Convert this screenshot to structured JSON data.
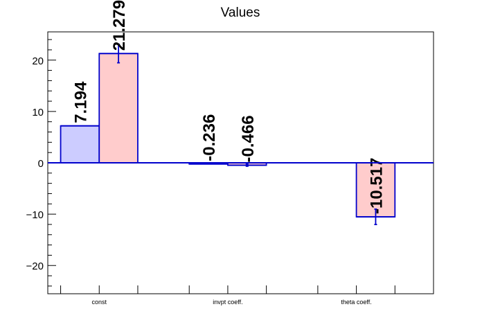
{
  "chart_data": {
    "type": "bar",
    "title": "Values",
    "categories": [
      "const",
      "invpt coeff.",
      "theta coeff."
    ],
    "series": [
      {
        "values": [
          7.194,
          -0.236,
          null
        ],
        "errors": [
          0,
          0,
          0
        ],
        "value_labels": [
          "7.194",
          "-0.236",
          ""
        ]
      },
      {
        "values": [
          21.279,
          -0.466,
          -10.517
        ],
        "errors": [
          1.8,
          0.2,
          1.5
        ],
        "value_labels": [
          "21.279",
          "-0.466",
          "-10.517"
        ]
      }
    ],
    "ylim": [
      -25.5,
      25.5
    ],
    "yticks": [
      -20,
      -10,
      0,
      10,
      20
    ],
    "ytick_labels": [
      "−20",
      "−10",
      "0",
      "10",
      "20"
    ],
    "colors": {
      "series_fill": [
        "#ccccff",
        "#ffcccc"
      ],
      "bar_edge": "#0000cc",
      "axis": "#000000"
    },
    "grid": false,
    "legend": "none"
  }
}
